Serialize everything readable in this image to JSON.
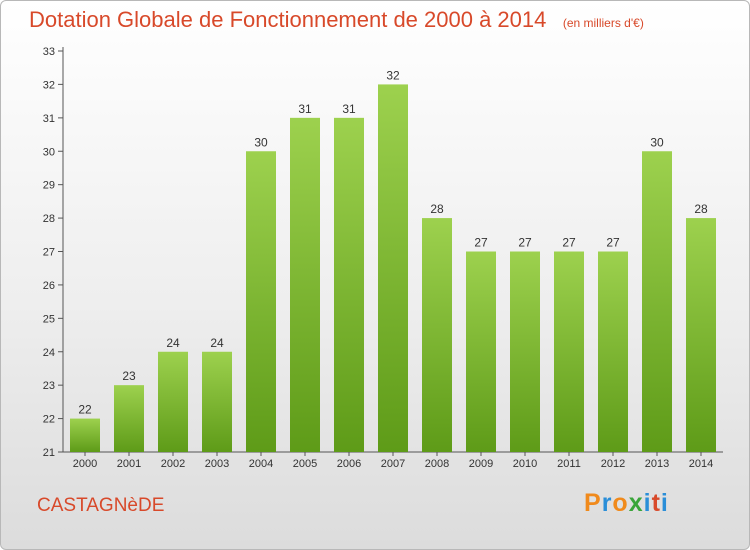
{
  "header": {
    "title": "Dotation Globale de Fonctionnement de 2000 à 2014",
    "subtitle": "(en milliers d'€)"
  },
  "footer": {
    "commune": "CASTAGNèDE",
    "logo": "Proxiti"
  },
  "colors": {
    "title": "#d8492a",
    "bar_light": "#9dd14e",
    "bar_dark": "#5e9b18",
    "axis": "#555555",
    "logo_letters": [
      "#f08a1c",
      "#2a8ed8",
      "#f08a1c",
      "#3aa53a",
      "#2a8ed8",
      "#d8492a",
      "#2a8ed8"
    ]
  },
  "chart_data": {
    "type": "bar",
    "title": "Dotation Globale de Fonctionnement de 2000 à 2014",
    "subtitle": "(en milliers d'€)",
    "xlabel": "",
    "ylabel": "",
    "categories": [
      "2000",
      "2001",
      "2002",
      "2003",
      "2004",
      "2005",
      "2006",
      "2007",
      "2008",
      "2009",
      "2010",
      "2011",
      "2012",
      "2013",
      "2014"
    ],
    "values": [
      22,
      23,
      24,
      24,
      30,
      31,
      31,
      32,
      28,
      27,
      27,
      27,
      27,
      30,
      28
    ],
    "ylim": [
      21,
      33
    ],
    "yticks": [
      21,
      22,
      23,
      24,
      25,
      26,
      27,
      28,
      29,
      30,
      31,
      32,
      33
    ],
    "grid": false,
    "data_labels": true
  }
}
